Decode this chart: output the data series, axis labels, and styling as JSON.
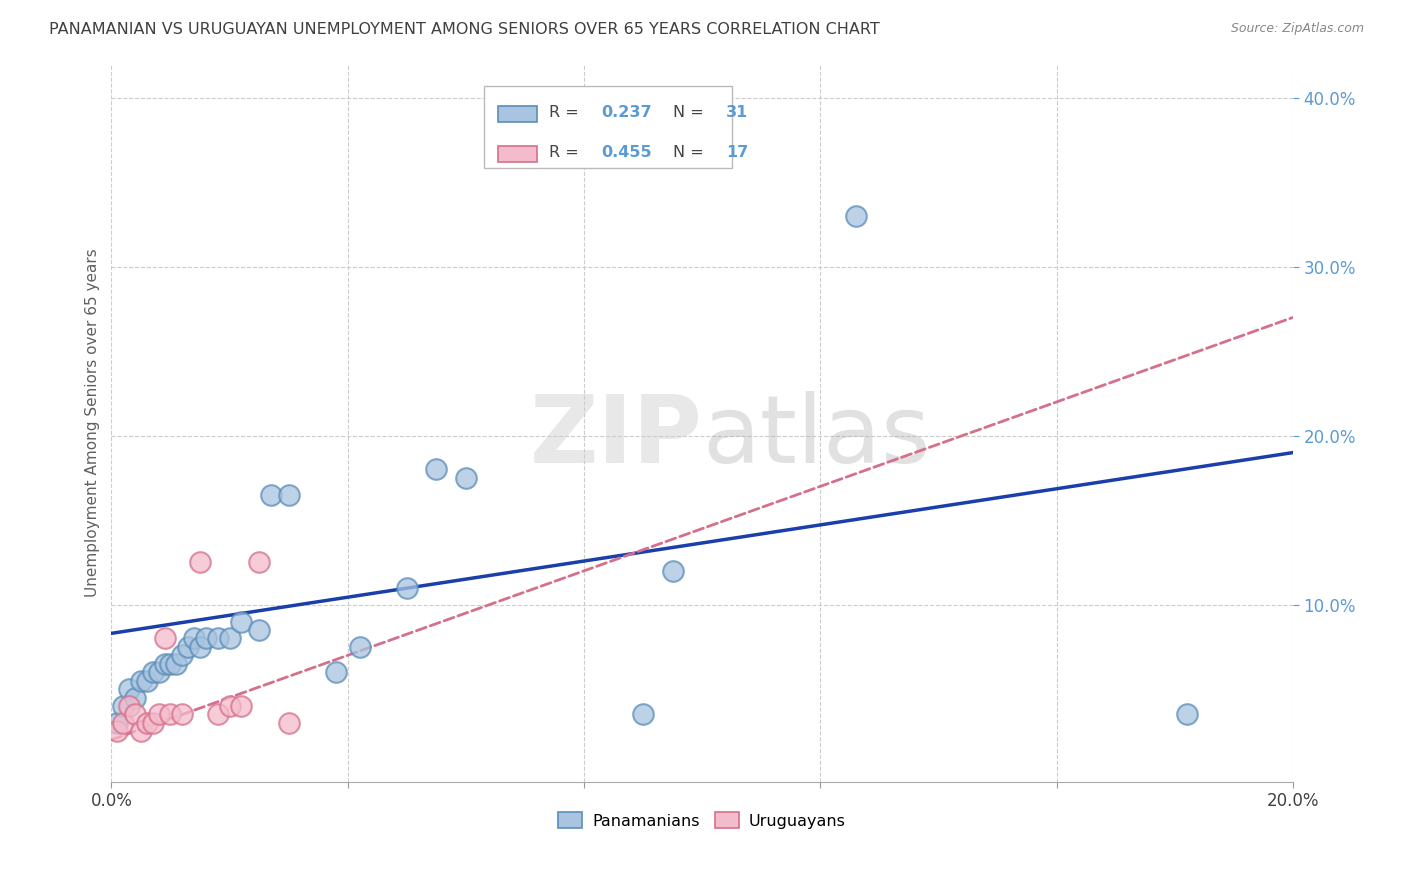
{
  "title": "PANAMANIAN VS URUGUAYAN UNEMPLOYMENT AMONG SENIORS OVER 65 YEARS CORRELATION CHART",
  "source": "Source: ZipAtlas.com",
  "ylabel": "Unemployment Among Seniors over 65 years",
  "xlim": [
    0.0,
    0.2
  ],
  "ylim": [
    -0.005,
    0.42
  ],
  "xticks": [
    0.0,
    0.04,
    0.08,
    0.12,
    0.16,
    0.2
  ],
  "xtick_labels": [
    "0.0%",
    "",
    "",
    "",
    "",
    "20.0%"
  ],
  "yticks_right": [
    0.1,
    0.2,
    0.3,
    0.4
  ],
  "ytick_right_labels": [
    "10.0%",
    "20.0%",
    "30.0%",
    "40.0%"
  ],
  "watermark_zip": "ZIP",
  "watermark_atlas": "atlas",
  "blue_color": "#A8C4E0",
  "blue_edge": "#5B8DB8",
  "pink_color": "#F4BBCC",
  "pink_edge": "#D4708A",
  "line_blue": "#1A3FAA",
  "line_pink": "#D4708A",
  "right_tick_color": "#5B9BD5",
  "title_color": "#404040",
  "bg_color": "#FFFFFF",
  "grid_color": "#CCCCCC",
  "axis_label_color": "#606060",
  "panamanians_x": [
    0.001,
    0.002,
    0.003,
    0.004,
    0.005,
    0.006,
    0.007,
    0.008,
    0.009,
    0.01,
    0.011,
    0.012,
    0.013,
    0.014,
    0.015,
    0.016,
    0.018,
    0.02,
    0.022,
    0.025,
    0.027,
    0.03,
    0.038,
    0.042,
    0.05,
    0.055,
    0.06,
    0.09,
    0.095,
    0.126,
    0.182
  ],
  "panamanians_y": [
    0.03,
    0.04,
    0.05,
    0.045,
    0.055,
    0.055,
    0.06,
    0.06,
    0.065,
    0.065,
    0.065,
    0.07,
    0.075,
    0.08,
    0.075,
    0.08,
    0.08,
    0.08,
    0.09,
    0.085,
    0.165,
    0.165,
    0.06,
    0.075,
    0.11,
    0.18,
    0.175,
    0.035,
    0.12,
    0.33,
    0.035
  ],
  "uruguayans_x": [
    0.001,
    0.002,
    0.003,
    0.004,
    0.005,
    0.006,
    0.007,
    0.008,
    0.009,
    0.01,
    0.012,
    0.015,
    0.018,
    0.02,
    0.022,
    0.025,
    0.03
  ],
  "uruguayans_y": [
    0.025,
    0.03,
    0.04,
    0.035,
    0.025,
    0.03,
    0.03,
    0.035,
    0.08,
    0.035,
    0.035,
    0.125,
    0.035,
    0.04,
    0.04,
    0.125,
    0.03
  ],
  "blue_line_x0": 0.0,
  "blue_line_y0": 0.083,
  "blue_line_x1": 0.2,
  "blue_line_y1": 0.19,
  "pink_line_x0": 0.0,
  "pink_line_y0": 0.02,
  "pink_line_x1": 0.2,
  "pink_line_y1": 0.27
}
